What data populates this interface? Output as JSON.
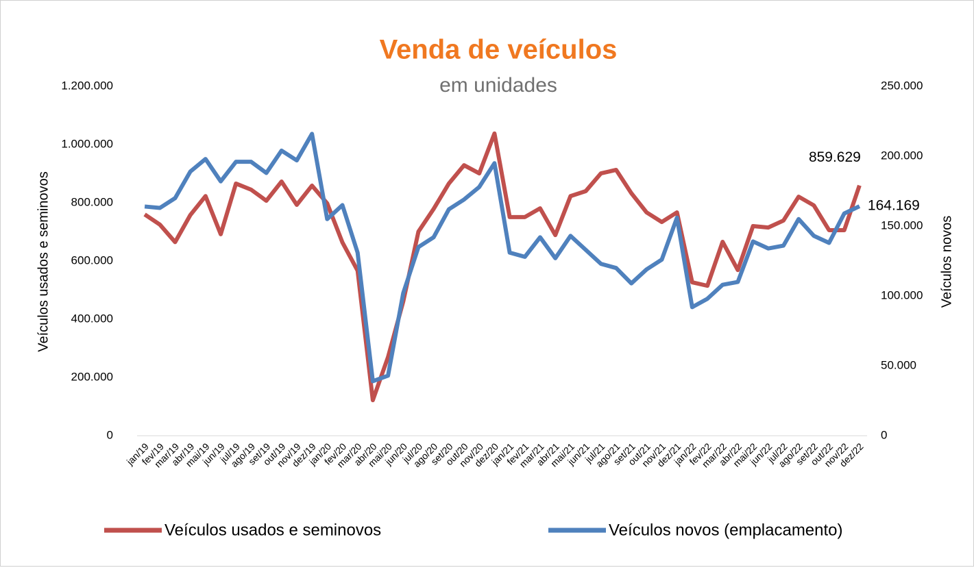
{
  "chart_data": {
    "type": "line",
    "title": "Venda de veículos",
    "subtitle": "em unidades",
    "y_label": "Veículos usados e seminovos",
    "y2_label": "Veículos novos",
    "categories": [
      "jan/19",
      "fev/19",
      "mar/19",
      "abr/19",
      "mai/19",
      "jun/19",
      "jul/19",
      "ago/19",
      "set/19",
      "out/19",
      "nov/19",
      "dez/19",
      "jan/20",
      "fev/20",
      "mar/20",
      "abr/20",
      "mai/20",
      "jun/20",
      "jul/20",
      "ago/20",
      "set/20",
      "out/20",
      "nov/20",
      "dez/20",
      "jan/21",
      "fev/21",
      "mar/21",
      "abr/21",
      "mai/21",
      "jun/21",
      "jul/21",
      "ago/21",
      "set/21",
      "out/21",
      "nov/21",
      "dez/21",
      "jan/22",
      "fev/22",
      "mar/22",
      "abr/22",
      "mai/22",
      "jun/22",
      "jul/22",
      "ago/22",
      "set/22",
      "out/22",
      "nov/22",
      "dez/22"
    ],
    "series": [
      {
        "name": "Veículos usados e seminovos",
        "color": "#c0504d",
        "axis": "y",
        "values": [
          760000,
          725000,
          665000,
          758000,
          823000,
          692000,
          866000,
          845000,
          807000,
          873000,
          793000,
          859000,
          798000,
          664000,
          567000,
          122000,
          270000,
          461000,
          701000,
          779000,
          866000,
          929000,
          901000,
          1038000,
          751000,
          751000,
          781000,
          689000,
          823000,
          840000,
          901000,
          913000,
          833000,
          767000,
          734000,
          767000,
          527000,
          515000,
          666000,
          569000,
          720000,
          715000,
          739000,
          821000,
          791000,
          706000,
          706000,
          859629
        ],
        "value_labels": [
          null,
          null,
          null,
          null,
          null,
          null,
          null,
          null,
          null,
          null,
          null,
          null,
          null,
          null,
          null,
          null,
          null,
          null,
          null,
          null,
          null,
          null,
          null,
          null,
          null,
          null,
          null,
          null,
          null,
          null,
          null,
          null,
          null,
          null,
          null,
          null,
          null,
          null,
          null,
          null,
          null,
          null,
          null,
          null,
          null,
          null,
          null,
          "859.629"
        ]
      },
      {
        "name": "Veículos novos (emplacamento)",
        "color": "#4f81bd",
        "axis": "y2",
        "values": [
          164000,
          163000,
          170000,
          189000,
          198000,
          182000,
          196000,
          196000,
          188000,
          204000,
          197000,
          216000,
          155000,
          165000,
          131000,
          39000,
          43000,
          102000,
          135000,
          142000,
          162000,
          169000,
          178000,
          195000,
          131000,
          128000,
          142000,
          127000,
          143000,
          133000,
          123000,
          120000,
          109000,
          119000,
          126000,
          156000,
          92000,
          98000,
          108000,
          110000,
          139000,
          134000,
          136000,
          155000,
          143000,
          138000,
          159000,
          164169
        ],
        "value_labels": [
          null,
          null,
          null,
          null,
          null,
          null,
          null,
          null,
          null,
          null,
          null,
          null,
          null,
          null,
          null,
          null,
          null,
          null,
          null,
          null,
          null,
          null,
          null,
          null,
          null,
          null,
          null,
          null,
          null,
          null,
          null,
          null,
          null,
          null,
          null,
          null,
          null,
          null,
          null,
          null,
          null,
          null,
          null,
          null,
          null,
          null,
          null,
          "164.169"
        ]
      }
    ],
    "ylim": [
      0,
      1200000
    ],
    "yticks": [
      0,
      {
        "value": 200000,
        "label": "200.000"
      },
      {
        "value": 400000,
        "label": "400.000"
      },
      {
        "value": 600000,
        "label": "600.000"
      },
      {
        "value": 800000,
        "label": "800.000"
      },
      {
        "value": 1000000,
        "label": "1.000.000"
      },
      {
        "value": 1200000,
        "label": "1.200.000"
      }
    ],
    "y2lim": [
      0,
      250000
    ],
    "y2ticks": [
      0,
      {
        "value": 50000,
        "label": "50.000"
      },
      {
        "value": 100000,
        "label": "100.000"
      },
      {
        "value": 150000,
        "label": "150.000"
      },
      {
        "value": 200000,
        "label": "200.000"
      },
      {
        "value": 250000,
        "label": "250.000"
      }
    ],
    "legend": "bottom"
  }
}
